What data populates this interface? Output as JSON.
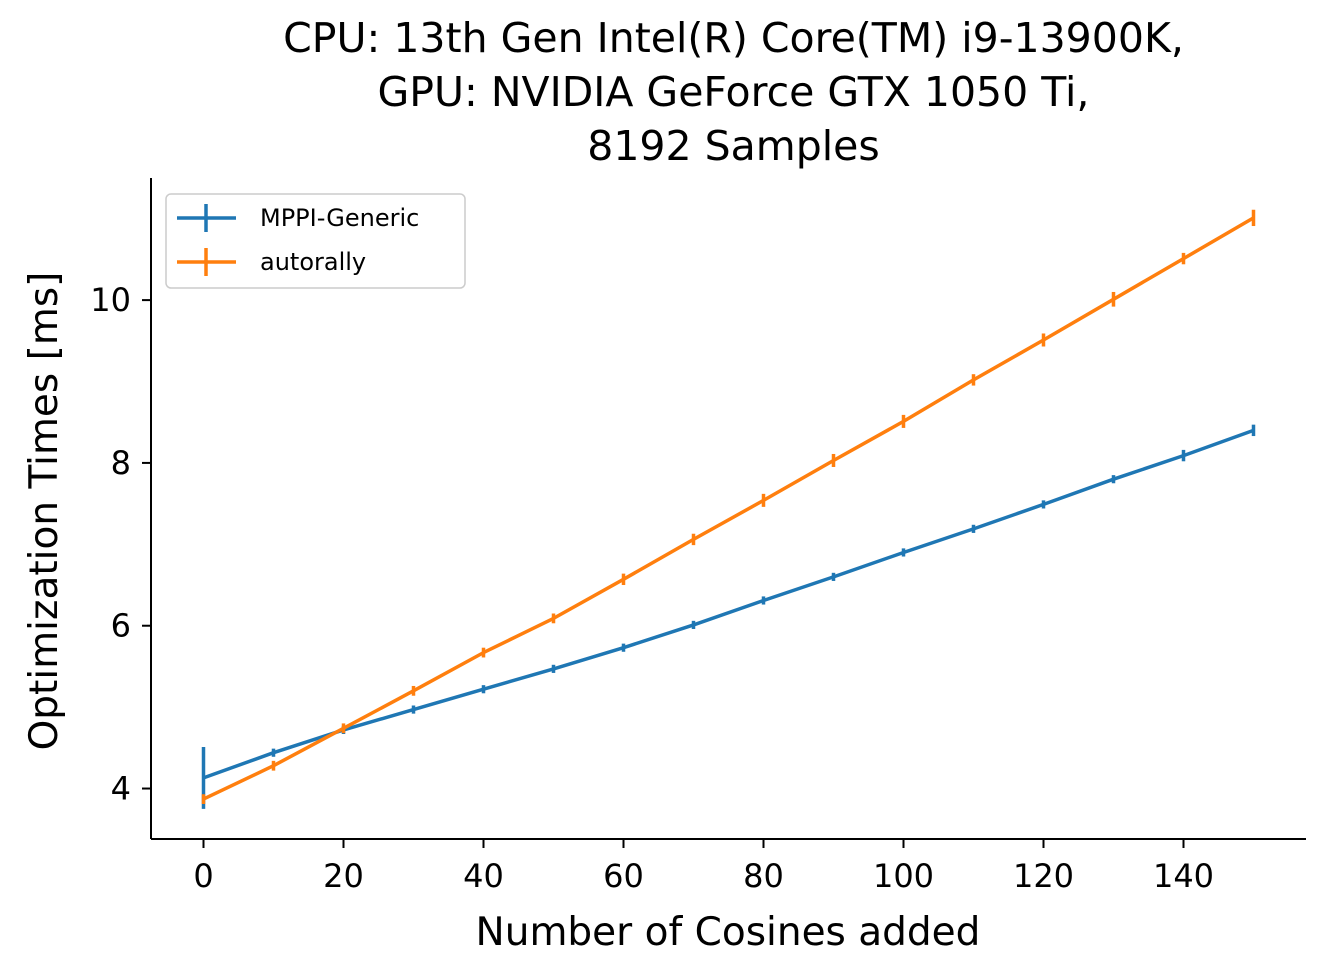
{
  "chart_data": {
    "type": "line",
    "title_lines": [
      "CPU: 13th Gen Intel(R) Core(TM) i9-13900K,",
      "GPU: NVIDIA GeForce GTX 1050 Ti,",
      "8192 Samples"
    ],
    "xlabel": "Number of Cosines added",
    "ylabel": "Optimization Times [ms]",
    "xlim": [
      -7.5,
      157.5
    ],
    "ylim": [
      3.38,
      11.5
    ],
    "xticks": [
      0,
      20,
      40,
      60,
      80,
      100,
      120,
      140
    ],
    "yticks": [
      4,
      6,
      8,
      10
    ],
    "x": [
      0,
      10,
      20,
      30,
      40,
      50,
      60,
      70,
      80,
      90,
      100,
      110,
      120,
      130,
      140,
      150
    ],
    "series": [
      {
        "name": "MPPI-Generic",
        "color": "#1f77b4",
        "values": [
          4.13,
          4.44,
          4.72,
          4.97,
          5.22,
          5.47,
          5.73,
          6.01,
          6.31,
          6.6,
          6.9,
          7.19,
          7.49,
          7.8,
          8.09,
          8.4
        ],
        "errors": [
          0.38,
          0.05,
          0.05,
          0.05,
          0.05,
          0.05,
          0.05,
          0.05,
          0.05,
          0.05,
          0.05,
          0.05,
          0.05,
          0.05,
          0.07,
          0.07
        ]
      },
      {
        "name": "autorally",
        "color": "#ff7f0e",
        "values": [
          3.87,
          4.28,
          4.74,
          5.2,
          5.67,
          6.09,
          6.57,
          7.06,
          7.54,
          8.03,
          8.51,
          9.02,
          9.51,
          10.01,
          10.51,
          11.01
        ],
        "errors": [
          0.06,
          0.06,
          0.06,
          0.06,
          0.06,
          0.06,
          0.07,
          0.07,
          0.08,
          0.08,
          0.08,
          0.07,
          0.08,
          0.09,
          0.07,
          0.1
        ]
      }
    ],
    "legend_position": "upper-left",
    "grid": false
  }
}
